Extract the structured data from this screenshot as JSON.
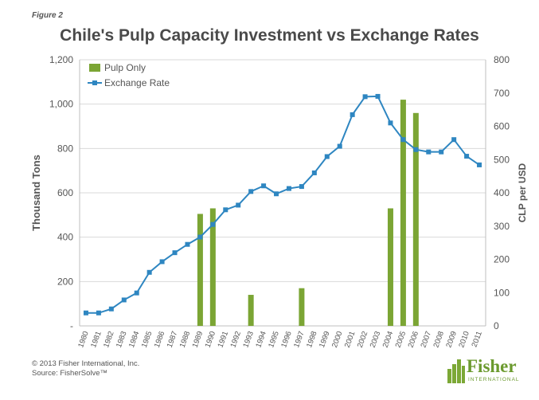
{
  "figure_label": "Figure 2",
  "footer": {
    "copyright": "© 2013 Fisher International, Inc.",
    "source": "Source: FisherSolve™"
  },
  "logo": {
    "name": "Fisher",
    "subtitle": "INTERNATIONAL"
  },
  "colors": {
    "bar": "#7ba534",
    "line": "#2e86c1",
    "axis_text": "#555555",
    "title": "#4a4a4a"
  },
  "chart_data": {
    "type": "bar+line",
    "title": "Chile's Pulp Capacity Investment vs Exchange Rates",
    "categories": [
      "1980",
      "1981",
      "1982",
      "1983",
      "1984",
      "1985",
      "1986",
      "1987",
      "1988",
      "1989",
      "1990",
      "1991",
      "1992",
      "1993",
      "1994",
      "1995",
      "1996",
      "1997",
      "1998",
      "1999",
      "2000",
      "2001",
      "2002",
      "2003",
      "2004",
      "2005",
      "2006",
      "2007",
      "2008",
      "2009",
      "2010",
      "2011"
    ],
    "y_left": {
      "label": "Thousand Tons",
      "range": [
        0,
        1200
      ],
      "ticks": [
        0,
        200,
        400,
        600,
        800,
        1000,
        1200
      ],
      "tick_labels": [
        "-",
        "200",
        "400",
        "600",
        "800",
        "1,000",
        "1,200"
      ]
    },
    "y_right": {
      "label": "CLP per USD",
      "range": [
        0,
        800
      ],
      "ticks": [
        0,
        100,
        200,
        300,
        400,
        500,
        600,
        700,
        800
      ],
      "tick_labels": [
        "0",
        "100",
        "200",
        "300",
        "400",
        "500",
        "600",
        "700",
        "800"
      ]
    },
    "series": [
      {
        "name": "Pulp Only",
        "type": "bar",
        "axis": "left",
        "values": [
          0,
          0,
          0,
          0,
          0,
          0,
          0,
          0,
          0,
          505,
          530,
          0,
          0,
          140,
          0,
          0,
          0,
          170,
          0,
          0,
          0,
          0,
          0,
          0,
          530,
          1020,
          960,
          0,
          0,
          0,
          0,
          0
        ]
      },
      {
        "name": "Exchange Rate",
        "type": "line",
        "axis": "right",
        "values": [
          39,
          39,
          51,
          78,
          99,
          161,
          193,
          220,
          245,
          267,
          305,
          349,
          363,
          404,
          421,
          397,
          413,
          419,
          460,
          509,
          540,
          635,
          689,
          690,
          610,
          560,
          530,
          523,
          523,
          560,
          510,
          484
        ]
      }
    ],
    "legend": [
      "Pulp Only",
      "Exchange Rate"
    ]
  }
}
